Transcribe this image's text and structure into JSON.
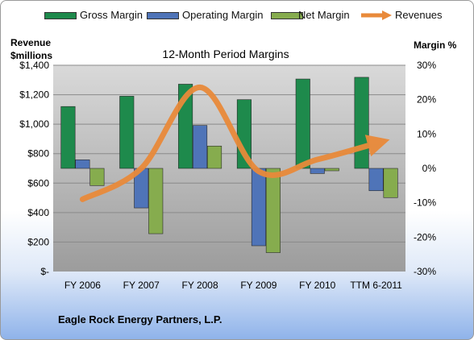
{
  "chart_data": {
    "type": "bar",
    "title": "12-Month Period Margins",
    "categories": [
      "FY 2006",
      "FY 2007",
      "FY 2008",
      "FY 2009",
      "FY 2010",
      "TTM 6-2011"
    ],
    "left_axis": {
      "title": [
        "Revenue",
        "$millions"
      ],
      "ylim": [
        0,
        1400
      ],
      "ticks": [
        0,
        200,
        400,
        600,
        800,
        1000,
        1200,
        1400
      ],
      "tick_labels": [
        "$-",
        "$200",
        "$400",
        "$600",
        "$800",
        "$1,000",
        "$1,200",
        "$1,400"
      ]
    },
    "right_axis": {
      "title": "Margin %",
      "ylim": [
        -30,
        30
      ],
      "ticks": [
        -30,
        -20,
        -10,
        0,
        10,
        20,
        30
      ],
      "tick_labels": [
        "-30%",
        "-20%",
        "-10%",
        "0%",
        "10%",
        "20%",
        "30%"
      ]
    },
    "series": [
      {
        "name": "Gross Margin",
        "kind": "bar",
        "axis": "right",
        "color": "#1e8a4c",
        "values": [
          18,
          21,
          24.5,
          20,
          26,
          26.5
        ]
      },
      {
        "name": "Operating Margin",
        "kind": "bar",
        "axis": "right",
        "color": "#4f74b8",
        "values": [
          2.5,
          -11.5,
          12.5,
          -22.5,
          -1.5,
          -6.5
        ]
      },
      {
        "name": "Net Margin",
        "kind": "bar",
        "axis": "right",
        "color": "#86ac4e",
        "values": [
          -5,
          -19,
          6.5,
          -24.5,
          -0.7,
          -8.5
        ]
      },
      {
        "name": "Revenues",
        "kind": "line",
        "axis": "left",
        "color": "#e98a3a",
        "values": [
          490,
          700,
          1250,
          680,
          760,
          870
        ]
      }
    ],
    "grid": true,
    "legend_position": "top",
    "plot_background": "#bdbdbd"
  },
  "footer": {
    "company": "Eagle Rock Energy Partners, L.P."
  }
}
